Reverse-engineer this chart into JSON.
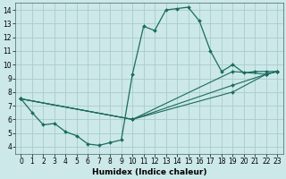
{
  "xlabel": "Humidex (Indice chaleur)",
  "bg_color": "#cce8e8",
  "grid_color": "#aacccc",
  "line_color": "#1a6b60",
  "marker": "D",
  "marker_size": 2.0,
  "xlim": [
    -0.5,
    23.5
  ],
  "ylim": [
    3.5,
    14.5
  ],
  "xticks": [
    0,
    1,
    2,
    3,
    4,
    5,
    6,
    7,
    8,
    9,
    10,
    11,
    12,
    13,
    14,
    15,
    16,
    17,
    18,
    19,
    20,
    21,
    22,
    23
  ],
  "yticks": [
    4,
    5,
    6,
    7,
    8,
    9,
    10,
    11,
    12,
    13,
    14
  ],
  "main_curve": {
    "x": [
      0,
      1,
      2,
      3,
      4,
      5,
      6,
      7,
      8,
      9,
      10,
      11,
      12,
      13,
      14,
      15,
      16,
      17,
      18,
      19,
      20,
      21,
      22,
      23
    ],
    "y": [
      7.5,
      6.5,
      5.6,
      5.7,
      5.1,
      4.8,
      4.2,
      4.1,
      4.3,
      4.5,
      9.3,
      12.8,
      12.5,
      14.0,
      14.1,
      14.2,
      13.2,
      11.0,
      9.5,
      10.0,
      9.4,
      9.5,
      9.5,
      9.5
    ]
  },
  "straight_lines": [
    {
      "x": [
        0,
        10,
        19,
        22,
        23
      ],
      "y": [
        7.5,
        6.0,
        9.5,
        9.3,
        9.5
      ]
    },
    {
      "x": [
        0,
        10,
        19,
        22,
        23
      ],
      "y": [
        7.5,
        6.0,
        8.5,
        9.3,
        9.5
      ]
    },
    {
      "x": [
        0,
        10,
        19,
        22,
        23
      ],
      "y": [
        7.5,
        6.0,
        8.0,
        9.3,
        9.5
      ]
    }
  ]
}
